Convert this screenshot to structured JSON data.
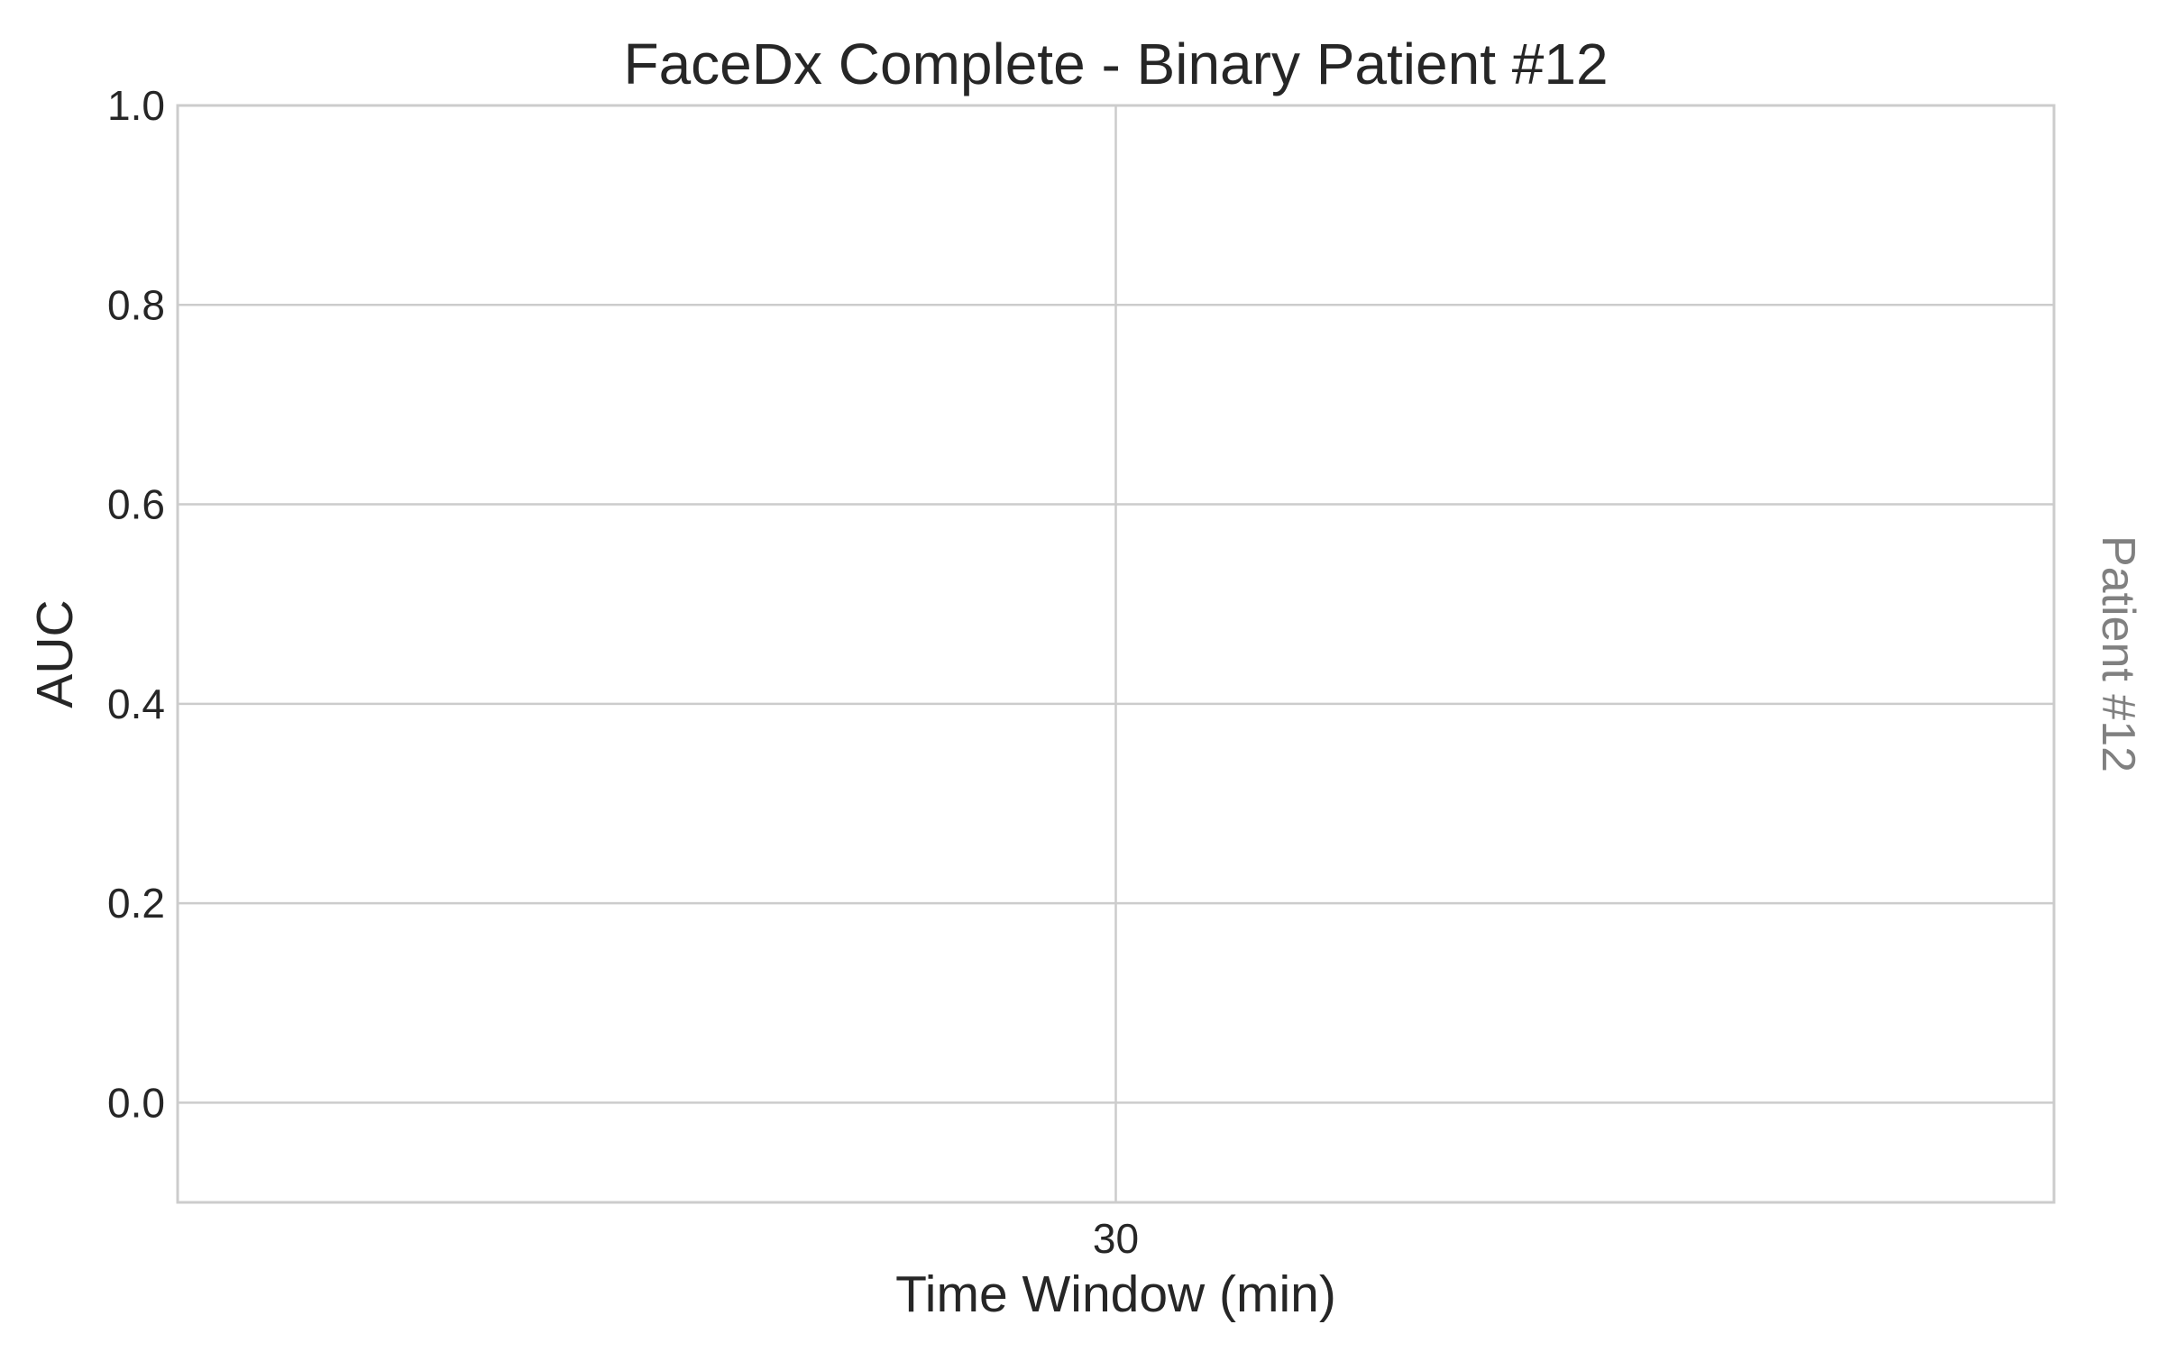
{
  "chart_data": {
    "type": "line",
    "title": "FaceDx Complete - Binary Patient #12",
    "xlabel": "Time Window (min)",
    "ylabel": "AUC",
    "side_label": "Patient #12",
    "x_ticks": [
      30
    ],
    "y_ticks": [
      "0.0",
      "0.2",
      "0.4",
      "0.6",
      "0.8",
      "1.0"
    ],
    "xlim": [
      29,
      31
    ],
    "ylim": [
      -0.1,
      1.0
    ],
    "grid": true,
    "series": []
  }
}
